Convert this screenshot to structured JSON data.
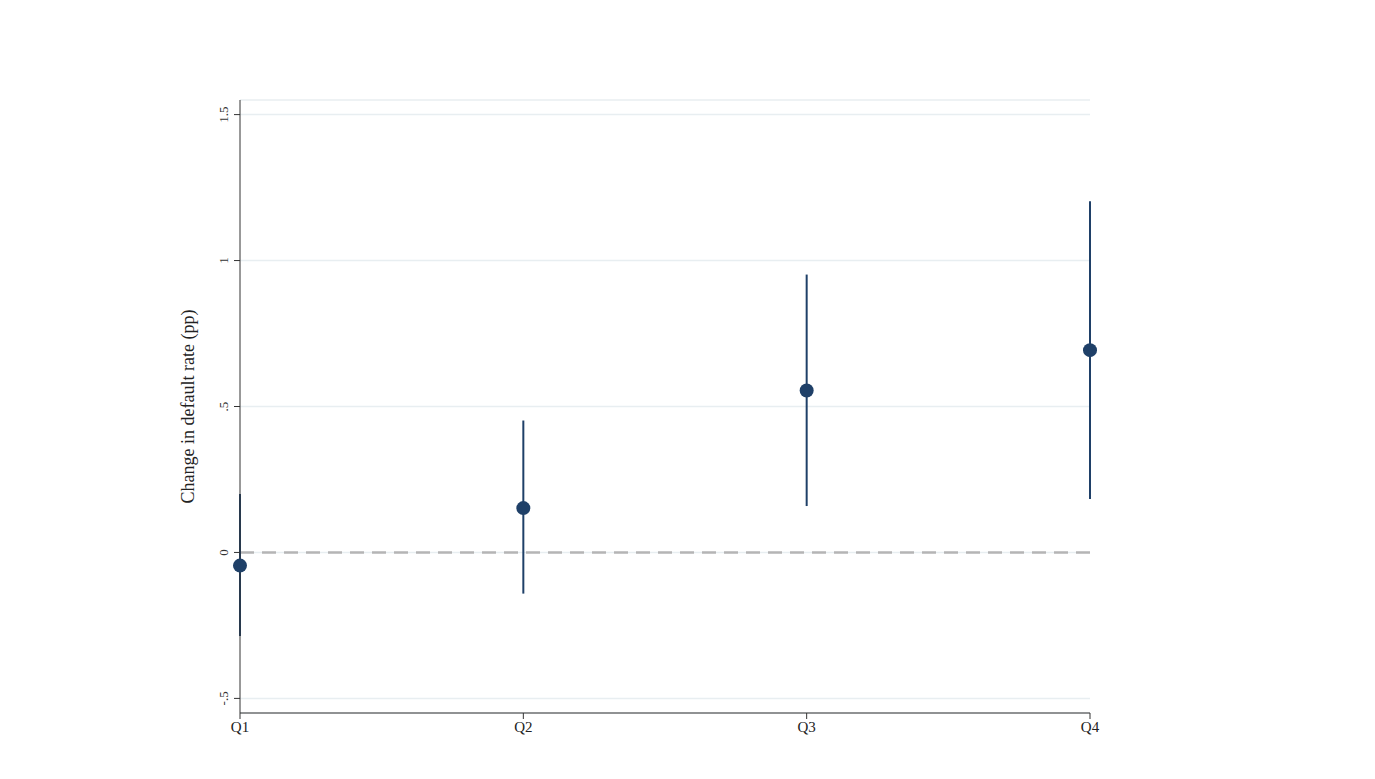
{
  "chart_data": {
    "type": "scatter",
    "y_label": "Change in default rate (pp)",
    "categories": [
      "Q1",
      "Q2",
      "Q3",
      "Q4"
    ],
    "values": [
      -0.045,
      0.152,
      0.555,
      0.693
    ],
    "ci_low": [
      -0.286,
      -0.141,
      0.159,
      0.183
    ],
    "ci_high": [
      0.2,
      0.452,
      0.952,
      1.203
    ],
    "color": "#1f4068",
    "ylim": [
      -0.55,
      1.55
    ],
    "yticks": [
      {
        "value": -0.5,
        "label": "-.5"
      },
      0,
      {
        "value": 0.5,
        "label": ".5"
      },
      1,
      1.5
    ],
    "grid": true,
    "reference_line": 0,
    "marker": "circle"
  }
}
